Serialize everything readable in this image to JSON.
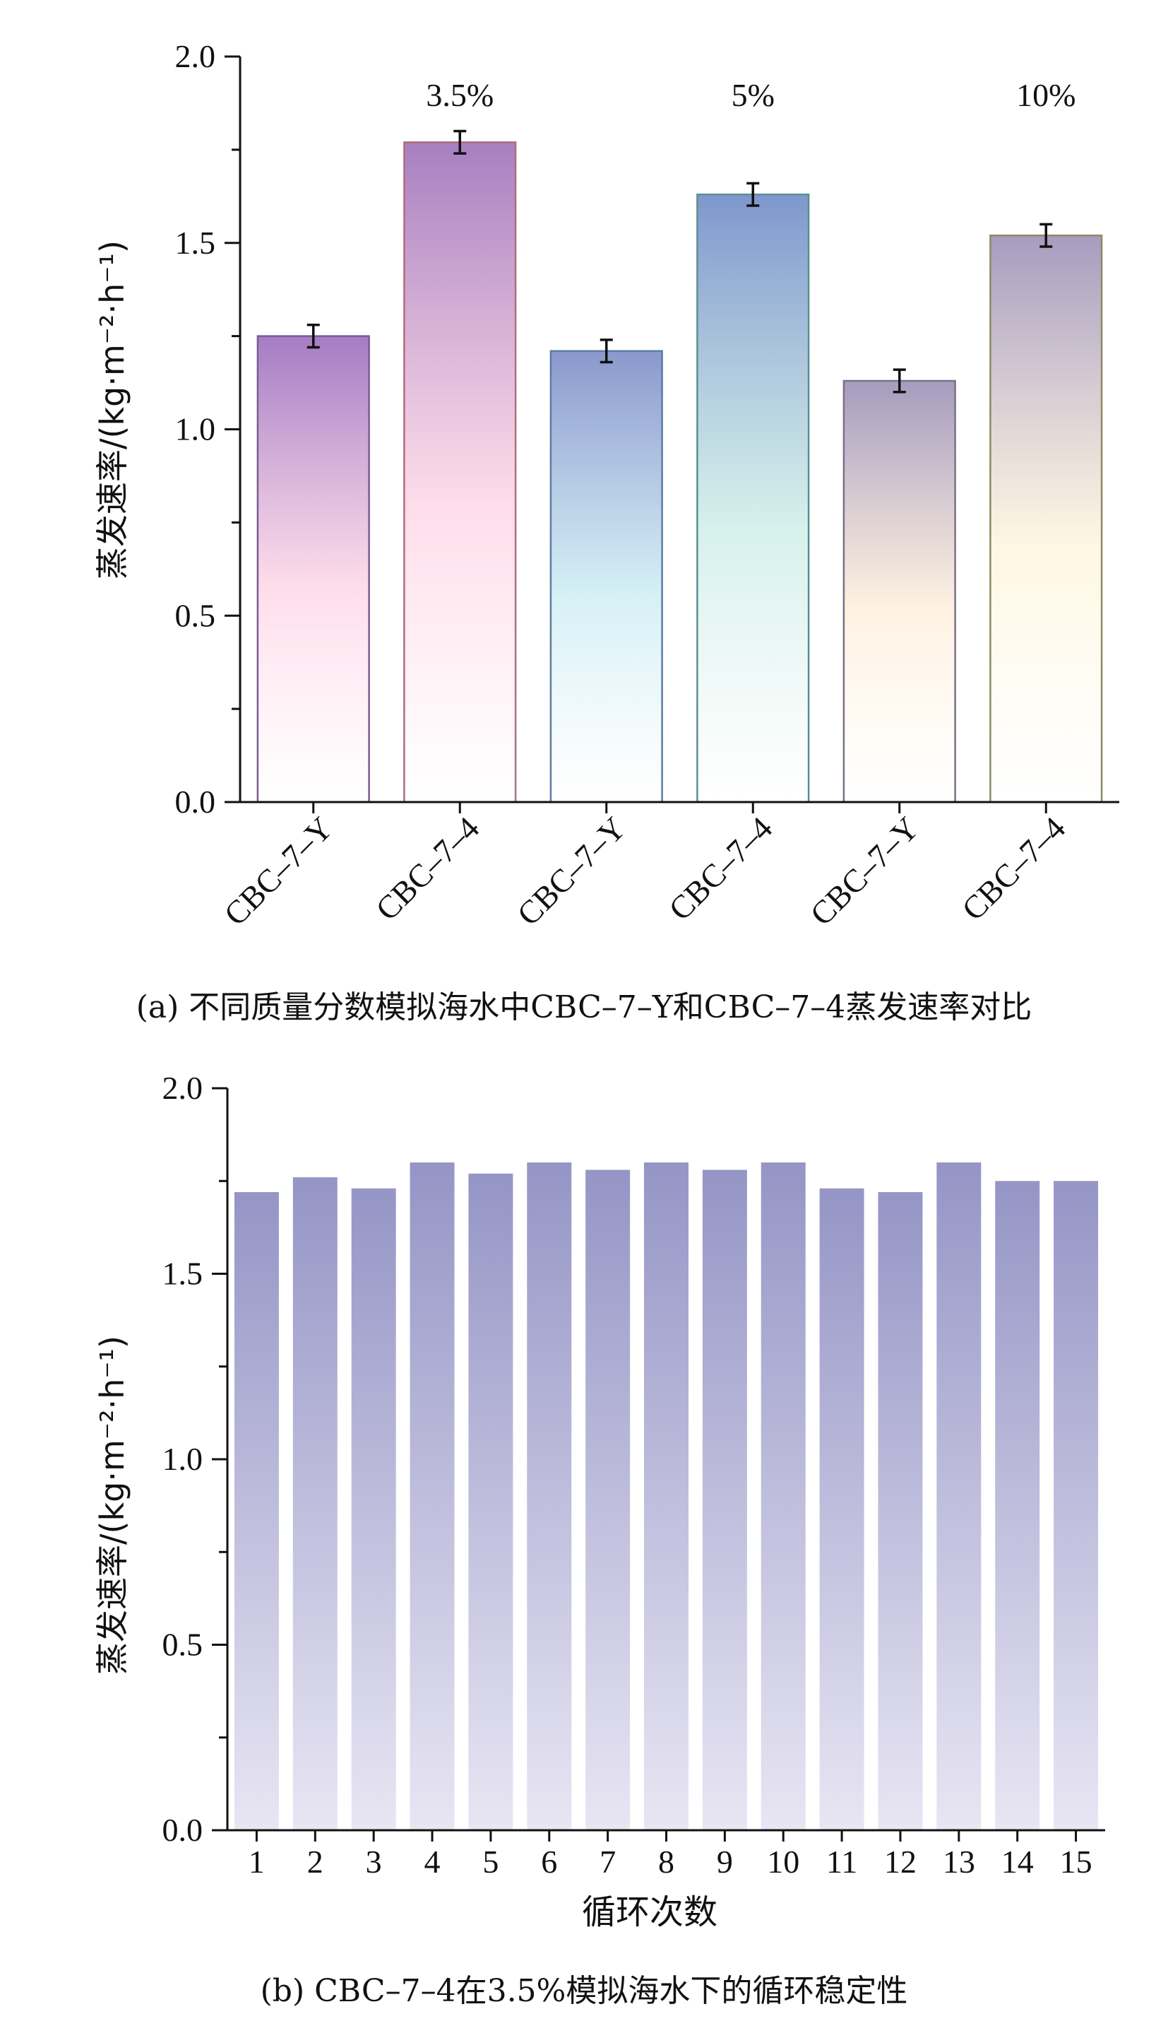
{
  "chart_data": [
    {
      "type": "bar",
      "categories": [
        "CBC–7–Y",
        "CBC–7–4",
        "CBC–7–Y",
        "CBC–7–4",
        "CBC–7–Y",
        "CBC–7–4"
      ],
      "values": [
        1.25,
        1.77,
        1.21,
        1.63,
        1.13,
        1.52
      ],
      "errors": [
        0.03,
        0.03,
        0.03,
        0.03,
        0.03,
        0.03
      ],
      "group_labels": [
        "3.5%",
        "5%",
        "10%"
      ],
      "ylabel": "蒸发速率/(kg·m⁻²·h⁻¹)",
      "yticks": [
        "0.0",
        "0.5",
        "1.0",
        "1.5",
        "2.0"
      ],
      "ylim": [
        0,
        2.0
      ],
      "caption": "(a) 不同质量分数模拟海水中CBC–7–Y和CBC–7–4蒸发速率对比",
      "bar_colors": [
        "#a57cc4",
        "#a77fc0",
        "#8a98cd",
        "#7e97cd",
        "#a59bbd",
        "#a89bbf"
      ],
      "bar_stroke": [
        "#7a5b91",
        "#b06d7c",
        "#5c7da2",
        "#5b8f92",
        "#7b7188",
        "#8d8a62"
      ]
    },
    {
      "type": "bar",
      "categories": [
        "1",
        "2",
        "3",
        "4",
        "5",
        "6",
        "7",
        "8",
        "9",
        "10",
        "11",
        "12",
        "13",
        "14",
        "15"
      ],
      "values": [
        1.72,
        1.76,
        1.73,
        1.8,
        1.77,
        1.8,
        1.78,
        1.8,
        1.78,
        1.8,
        1.73,
        1.72,
        1.8,
        1.75,
        1.75
      ],
      "xlabel": "循环次数",
      "ylabel": "蒸发速率/(kg·m⁻²·h⁻¹)",
      "yticks": [
        "0.0",
        "0.5",
        "1.0",
        "1.5",
        "2.0"
      ],
      "ylim": [
        0,
        2.0
      ],
      "caption": "(b) CBC–7–4在3.5%模拟海水下的循环稳定性",
      "bar_color": "#9595c6"
    }
  ]
}
